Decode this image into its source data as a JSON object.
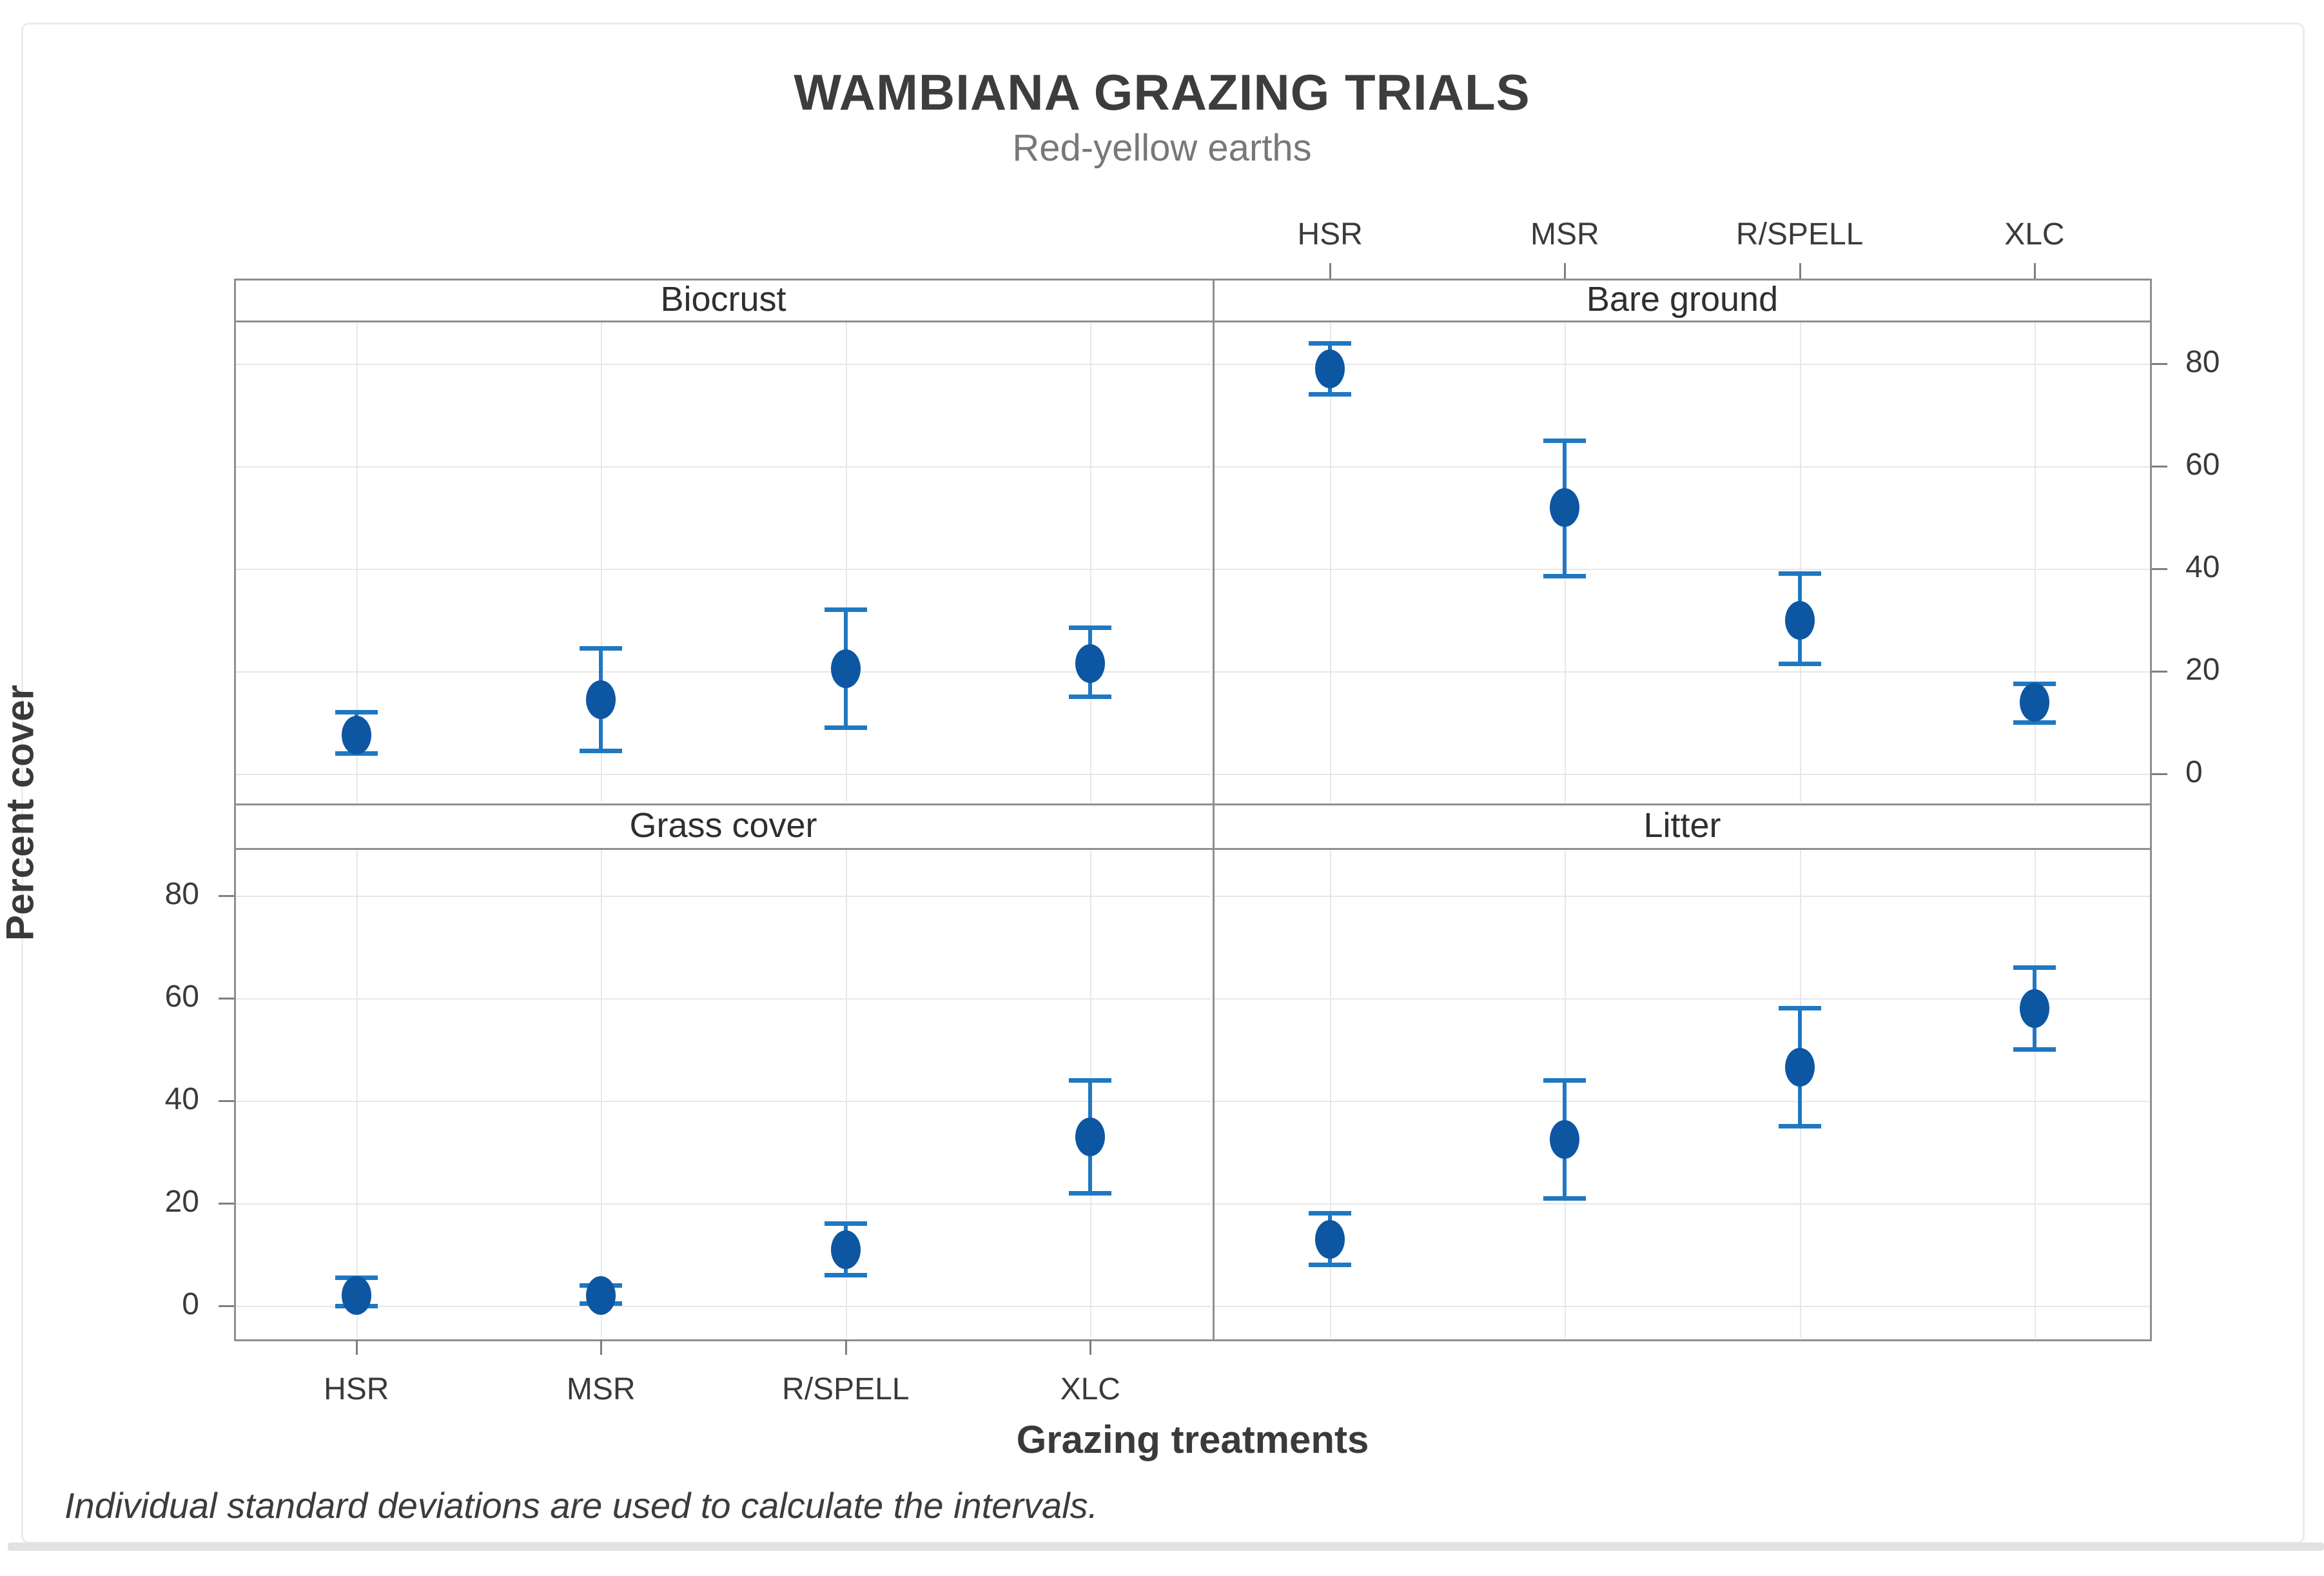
{
  "header": {
    "title": "WAMBIANA GRAZING TRIALS",
    "subtitle": "Red-yellow earths"
  },
  "axes": {
    "y_label": "Percent cover",
    "x_label": "Grazing treatments",
    "y_ticks": [
      80,
      60,
      40,
      20,
      0
    ],
    "categories": [
      "HSR",
      "MSR",
      "R/SPELL",
      "XLC"
    ]
  },
  "footnote": "Individual standard deviations are used to calculate the intervals.",
  "colors": {
    "marker": "#0d56a2",
    "whisker": "#1f78c1",
    "panel_border": "#8f8f8f",
    "gridline": "#e7e7e7",
    "tick": "#7f7f7f",
    "title_text": "#3d3d3d",
    "subtitle_text": "#787878",
    "tick_text": "#3a3a3a"
  },
  "chart_data": {
    "type": "scatter",
    "subtype": "interval-plot-with-error-bars",
    "title": "WAMBIANA GRAZING TRIALS",
    "subtitle": "Red-yellow earths",
    "xlabel": "Grazing treatments",
    "ylabel": "Percent cover",
    "grid": true,
    "ylim": [
      -6,
      89
    ],
    "y_tick_values": [
      0,
      20,
      40,
      60,
      80
    ],
    "categories": [
      "HSR",
      "MSR",
      "R/SPELL",
      "XLC"
    ],
    "legend_position": "none",
    "layout_hint": "2x2 panel grid; top row y-axis labeled on right, bottom row on left; category axis labeled above top-right panel and below bottom-left panel",
    "panels": [
      {
        "title": "Biocrust",
        "row": 0,
        "col": 0,
        "points": [
          {
            "cat": "HSR",
            "mean": 7.5,
            "lo": 4,
            "hi": 12
          },
          {
            "cat": "MSR",
            "mean": 14.5,
            "lo": 4.5,
            "hi": 24.5
          },
          {
            "cat": "R/SPELL",
            "mean": 20.5,
            "lo": 9,
            "hi": 32
          },
          {
            "cat": "XLC",
            "mean": 21.5,
            "lo": 15,
            "hi": 28.5
          }
        ]
      },
      {
        "title": "Bare ground",
        "row": 0,
        "col": 1,
        "points": [
          {
            "cat": "HSR",
            "mean": 79,
            "lo": 74,
            "hi": 84
          },
          {
            "cat": "MSR",
            "mean": 52,
            "lo": 38.5,
            "hi": 65
          },
          {
            "cat": "R/SPELL",
            "mean": 30,
            "lo": 21.5,
            "hi": 39
          },
          {
            "cat": "XLC",
            "mean": 14,
            "lo": 10,
            "hi": 17.5
          }
        ]
      },
      {
        "title": "Grass cover",
        "row": 1,
        "col": 0,
        "points": [
          {
            "cat": "HSR",
            "mean": 2,
            "lo": 0,
            "hi": 5.5
          },
          {
            "cat": "MSR",
            "mean": 2,
            "lo": 0.5,
            "hi": 4
          },
          {
            "cat": "R/SPELL",
            "mean": 11,
            "lo": 6,
            "hi": 16
          },
          {
            "cat": "XLC",
            "mean": 33,
            "lo": 22,
            "hi": 44
          }
        ]
      },
      {
        "title": "Litter",
        "row": 1,
        "col": 1,
        "points": [
          {
            "cat": "HSR",
            "mean": 13,
            "lo": 8,
            "hi": 18
          },
          {
            "cat": "MSR",
            "mean": 32.5,
            "lo": 21,
            "hi": 44
          },
          {
            "cat": "R/SPELL",
            "mean": 46.5,
            "lo": 35,
            "hi": 58
          },
          {
            "cat": "XLC",
            "mean": 58,
            "lo": 50,
            "hi": 66
          }
        ]
      }
    ]
  }
}
